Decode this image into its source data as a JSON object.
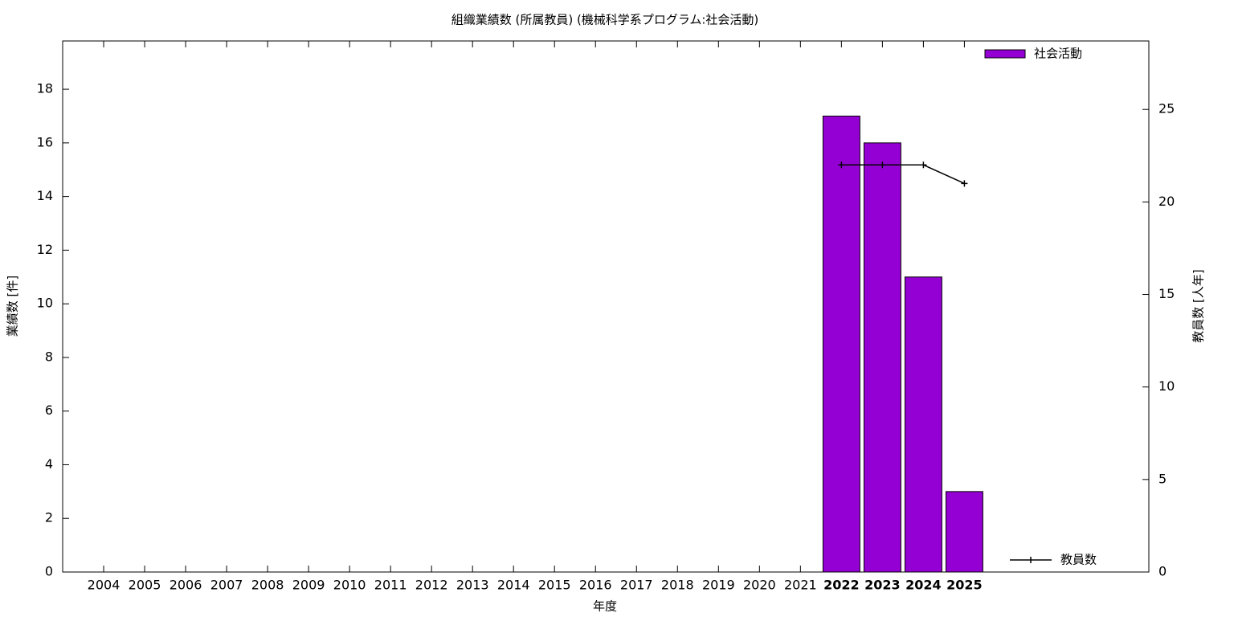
{
  "chart_data": {
    "type": "bar",
    "title": "組織業績数 (所属教員) (機械科学系プログラム:社会活動)",
    "xlabel": "年度",
    "ylabel": "業績数 [件]",
    "y2label": "教員数 [人年]",
    "x": [
      2004,
      2005,
      2006,
      2007,
      2008,
      2009,
      2010,
      2011,
      2012,
      2013,
      2014,
      2015,
      2016,
      2017,
      2018,
      2019,
      2020,
      2021,
      2022,
      2023,
      2024,
      2025
    ],
    "xlim": [
      2003,
      2029.5
    ],
    "xticks": [
      2004,
      2005,
      2006,
      2007,
      2008,
      2009,
      2010,
      2011,
      2012,
      2013,
      2014,
      2015,
      2016,
      2017,
      2018,
      2019,
      2020,
      2021,
      2022,
      2023,
      2024,
      2025
    ],
    "ylim": [
      0,
      19.8
    ],
    "yticks": [
      0,
      2,
      4,
      6,
      8,
      10,
      12,
      14,
      16,
      18
    ],
    "y2lim": [
      0,
      28.7
    ],
    "y2ticks": [
      0,
      5,
      10,
      15,
      20,
      25
    ],
    "series": [
      {
        "name": "社会活動",
        "type": "bar",
        "color": "#9400d3",
        "values": [
          0,
          0,
          0,
          0,
          0,
          0,
          0,
          0,
          0,
          0,
          0,
          0,
          0,
          0,
          0,
          0,
          0,
          0,
          17,
          16,
          11,
          3
        ]
      },
      {
        "name": "教員数",
        "type": "line",
        "color": "#000000",
        "axis": "y2",
        "values": [
          null,
          null,
          null,
          null,
          null,
          null,
          null,
          null,
          null,
          null,
          null,
          null,
          null,
          null,
          null,
          null,
          null,
          null,
          22,
          22,
          22,
          21
        ]
      }
    ]
  }
}
